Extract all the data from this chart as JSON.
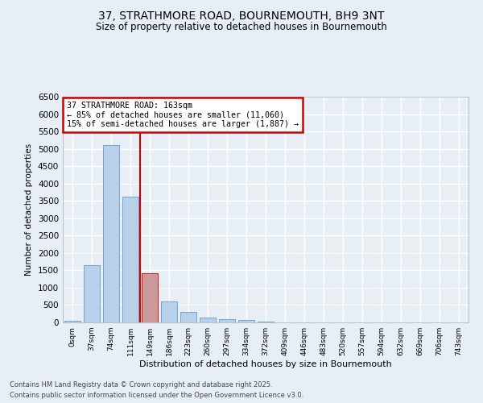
{
  "title_line1": "37, STRATHMORE ROAD, BOURNEMOUTH, BH9 3NT",
  "title_line2": "Size of property relative to detached houses in Bournemouth",
  "xlabel": "Distribution of detached houses by size in Bournemouth",
  "ylabel": "Number of detached properties",
  "footer_line1": "Contains HM Land Registry data © Crown copyright and database right 2025.",
  "footer_line2": "Contains public sector information licensed under the Open Government Licence v3.0.",
  "categories": [
    "0sqm",
    "37sqm",
    "74sqm",
    "111sqm",
    "149sqm",
    "186sqm",
    "223sqm",
    "260sqm",
    "297sqm",
    "334sqm",
    "372sqm",
    "409sqm",
    "446sqm",
    "483sqm",
    "520sqm",
    "557sqm",
    "594sqm",
    "632sqm",
    "669sqm",
    "706sqm",
    "743sqm"
  ],
  "values": [
    50,
    1650,
    5100,
    3620,
    1420,
    600,
    310,
    145,
    100,
    70,
    30,
    10,
    2,
    0,
    0,
    0,
    0,
    0,
    0,
    0,
    0
  ],
  "bar_color": "#b8d0e8",
  "bar_edge_color": "#6699cc",
  "highlight_index": 4,
  "highlight_bar_color": "#cc9999",
  "highlight_bar_edge_color": "#cc0000",
  "vline_color": "#cc0000",
  "annotation_title": "37 STRATHMORE ROAD: 163sqm",
  "annotation_line1": "← 85% of detached houses are smaller (11,060)",
  "annotation_line2": "15% of semi-detached houses are larger (1,887) →",
  "annotation_edge_color": "#cc0000",
  "ylim_max": 6500,
  "yticks": [
    0,
    500,
    1000,
    1500,
    2000,
    2500,
    3000,
    3500,
    4000,
    4500,
    5000,
    5500,
    6000,
    6500
  ],
  "bg_color": "#e8eef5",
  "grid_color": "#ffffff"
}
